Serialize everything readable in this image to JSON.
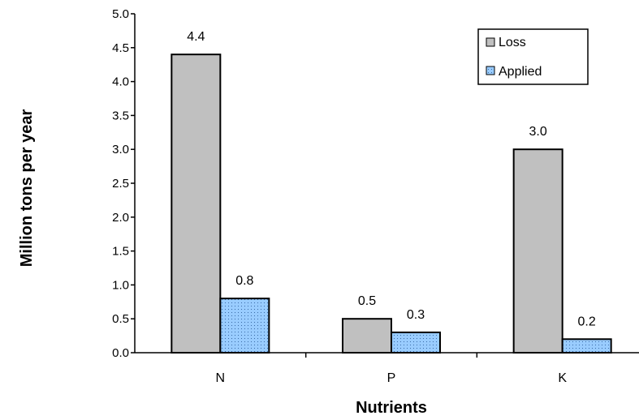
{
  "chart_data": {
    "type": "bar",
    "categories": [
      "N",
      "P",
      "K"
    ],
    "series": [
      {
        "name": "Loss",
        "values": [
          4.4,
          0.5,
          3.0
        ],
        "color": "#c0c0c0"
      },
      {
        "name": "Applied",
        "values": [
          0.8,
          0.3,
          0.2
        ],
        "color": "#99ccff"
      }
    ],
    "data_labels": [
      [
        "4.4",
        "0.5",
        "3.0"
      ],
      [
        "0.8",
        "0.3",
        "0.2"
      ]
    ],
    "xlabel": "Nutrients",
    "ylabel": "Million tons per year",
    "ylim": [
      0,
      5.0
    ],
    "yticks": [
      "0.0",
      "0.5",
      "1.0",
      "1.5",
      "2.0",
      "2.5",
      "3.0",
      "3.5",
      "4.0",
      "4.5",
      "5.0"
    ],
    "grid": false,
    "legend_position": "top-right"
  }
}
